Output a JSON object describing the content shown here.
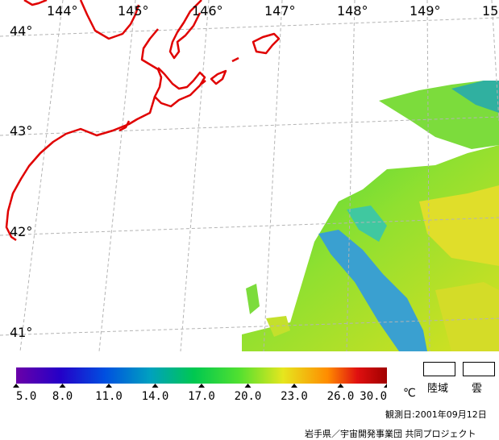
{
  "longitude_labels": [
    "144°",
    "145°",
    "146°",
    "147°",
    "148°",
    "149°",
    "15"
  ],
  "latitude_labels": [
    "44°",
    "43°",
    "42°",
    "41°"
  ],
  "legend": {
    "ticks": [
      "5.0",
      "8.0",
      "11.0",
      "14.0",
      "17.0",
      "20.0",
      "23.0",
      "26.0",
      "30.0"
    ],
    "unit": "℃",
    "colors": [
      "#6a00a8",
      "#2400c8",
      "#0050e0",
      "#00a0c0",
      "#00c850",
      "#50e030",
      "#e6e61e",
      "#ff8c00",
      "#e01010",
      "#a00000"
    ]
  },
  "keys": {
    "land": "陸域",
    "cloud": "雲"
  },
  "footer": {
    "date": "観測日:2001年09月12日",
    "credit": "岩手県／宇宙開発事業団 共同プロジェクト"
  },
  "map_colors": {
    "coastline": "#e00000",
    "grid": "#b4b4b4",
    "background": "#ffffff"
  }
}
